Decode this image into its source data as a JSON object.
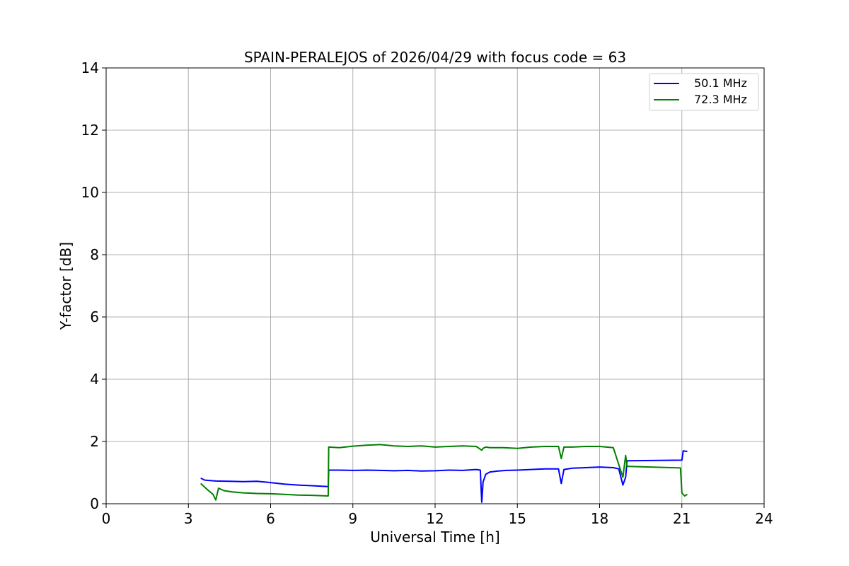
{
  "chart_data": {
    "type": "line",
    "title": "SPAIN-PERALEJOS of 2026/04/29 with focus code = 63",
    "xlabel": "Universal Time [h]",
    "ylabel": "Y-factor [dB]",
    "xlim": [
      0,
      24
    ],
    "ylim": [
      0,
      14
    ],
    "xticks": [
      0,
      3,
      6,
      9,
      12,
      15,
      18,
      21,
      24
    ],
    "yticks": [
      0,
      2,
      4,
      6,
      8,
      10,
      12,
      14
    ],
    "grid": true,
    "legend_position": "top-right",
    "series": [
      {
        "name": "50.1 MHz",
        "color": "#0000ff",
        "x": [
          3.45,
          3.6,
          4.0,
          4.5,
          5.0,
          5.5,
          6.0,
          6.5,
          7.0,
          7.5,
          8.1,
          8.12,
          8.5,
          9.0,
          9.5,
          10.0,
          10.5,
          11.0,
          11.5,
          12.0,
          12.5,
          13.0,
          13.5,
          13.65,
          13.7,
          13.75,
          13.85,
          14.0,
          14.3,
          14.6,
          15.0,
          15.5,
          16.0,
          16.5,
          16.6,
          16.7,
          17.0,
          17.5,
          18.0,
          18.5,
          18.7,
          18.85,
          18.95,
          19.0,
          21.0,
          21.05,
          21.2
        ],
        "y": [
          0.82,
          0.76,
          0.73,
          0.72,
          0.71,
          0.72,
          0.68,
          0.63,
          0.6,
          0.58,
          0.55,
          1.08,
          1.08,
          1.07,
          1.08,
          1.07,
          1.06,
          1.07,
          1.05,
          1.06,
          1.08,
          1.07,
          1.1,
          1.08,
          0.05,
          0.7,
          0.95,
          1.02,
          1.05,
          1.07,
          1.08,
          1.1,
          1.12,
          1.12,
          0.65,
          1.1,
          1.14,
          1.16,
          1.18,
          1.16,
          1.12,
          0.6,
          0.85,
          1.38,
          1.4,
          1.7,
          1.68
        ]
      },
      {
        "name": "72.3 MHz",
        "color": "#008000",
        "x": [
          3.45,
          3.7,
          3.9,
          4.0,
          4.1,
          4.3,
          4.6,
          5.0,
          5.5,
          6.0,
          6.5,
          7.0,
          7.5,
          8.1,
          8.12,
          8.5,
          9.0,
          9.5,
          10.0,
          10.5,
          11.0,
          11.5,
          12.0,
          12.5,
          13.0,
          13.5,
          13.7,
          13.75,
          13.85,
          14.0,
          14.5,
          15.0,
          15.5,
          16.0,
          16.5,
          16.6,
          16.7,
          17.0,
          17.5,
          18.0,
          18.5,
          18.85,
          18.95,
          19.0,
          20.95,
          21.0,
          21.1,
          21.2
        ],
        "y": [
          0.65,
          0.45,
          0.3,
          0.12,
          0.5,
          0.42,
          0.38,
          0.35,
          0.33,
          0.32,
          0.3,
          0.28,
          0.27,
          0.25,
          1.82,
          1.8,
          1.85,
          1.88,
          1.9,
          1.86,
          1.84,
          1.86,
          1.82,
          1.84,
          1.86,
          1.84,
          1.72,
          1.78,
          1.82,
          1.8,
          1.8,
          1.78,
          1.82,
          1.84,
          1.84,
          1.45,
          1.82,
          1.82,
          1.84,
          1.84,
          1.8,
          0.85,
          1.55,
          1.2,
          1.15,
          0.35,
          0.25,
          0.3
        ]
      }
    ]
  }
}
